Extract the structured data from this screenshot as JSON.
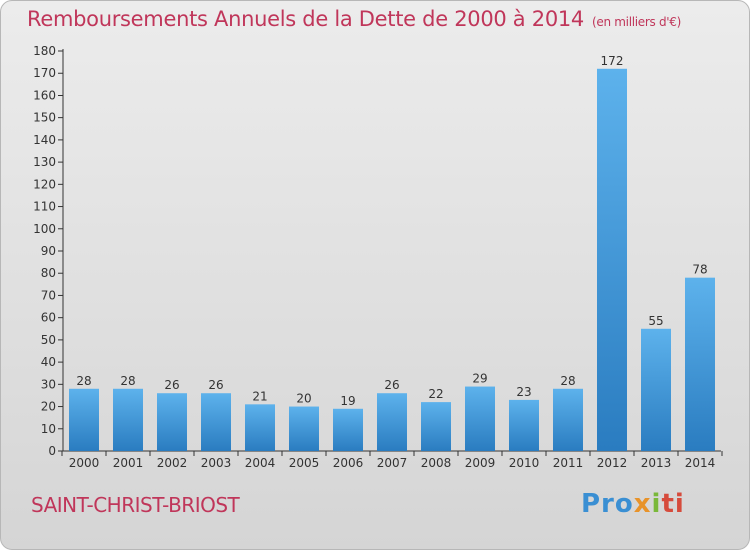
{
  "header": {
    "title": "Remboursements Annuels de la Dette de 2000 à 2014",
    "unit": "(en milliers d'€)"
  },
  "footer": {
    "commune": "SAINT-CHRIST-BRIOST",
    "logo": [
      "Pro",
      "x",
      "i",
      "ti"
    ]
  },
  "colors": {
    "accent": "#c0365a",
    "bar_light": "#5db2ec",
    "bar_dark": "#2a7cc0"
  },
  "chart_data": {
    "type": "bar",
    "title": "Remboursements Annuels de la Dette de 2000 à 2014",
    "xlabel": "",
    "ylabel": "",
    "categories": [
      "2000",
      "2001",
      "2002",
      "2003",
      "2004",
      "2005",
      "2006",
      "2007",
      "2008",
      "2009",
      "2010",
      "2011",
      "2012",
      "2013",
      "2014"
    ],
    "values": [
      28,
      28,
      26,
      26,
      21,
      20,
      19,
      26,
      22,
      29,
      23,
      28,
      172,
      55,
      78
    ],
    "ylim": [
      0,
      180
    ],
    "yticks": [
      0,
      10,
      20,
      30,
      40,
      50,
      60,
      70,
      80,
      90,
      100,
      110,
      120,
      130,
      140,
      150,
      160,
      170,
      180
    ],
    "grid": false
  }
}
